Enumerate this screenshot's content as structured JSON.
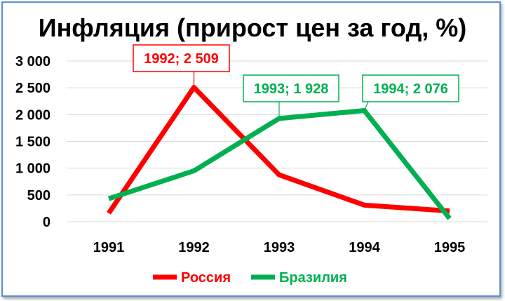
{
  "chart_data": {
    "type": "line",
    "title": "Инфляция (прирост цен за год, %)",
    "categories": [
      "1991",
      "1992",
      "1993",
      "1994",
      "1995"
    ],
    "ylim": [
      0,
      3000
    ],
    "y_ticks": [
      0,
      500,
      1000,
      1500,
      2000,
      2500,
      3000
    ],
    "y_tick_labels": [
      "0",
      "500",
      "1 000",
      "1 500",
      "2 000",
      "2 500",
      "3 000"
    ],
    "grid": true,
    "legend_position": "bottom",
    "series": [
      {
        "name": "Россия",
        "color": "#ff0000",
        "values": [
          160,
          2509,
          875,
          310,
          200
        ]
      },
      {
        "name": "Бразилия",
        "color": "#00b050",
        "values": [
          430,
          950,
          1928,
          2076,
          60
        ]
      }
    ],
    "annotations": [
      {
        "text": "1992; 2 509",
        "series": 0,
        "point": 1,
        "color": "#ff0000"
      },
      {
        "text": "1993; 1 928",
        "series": 1,
        "point": 2,
        "color": "#00b050"
      },
      {
        "text": "1994; 2 076",
        "series": 1,
        "point": 3,
        "color": "#00b050"
      }
    ]
  }
}
